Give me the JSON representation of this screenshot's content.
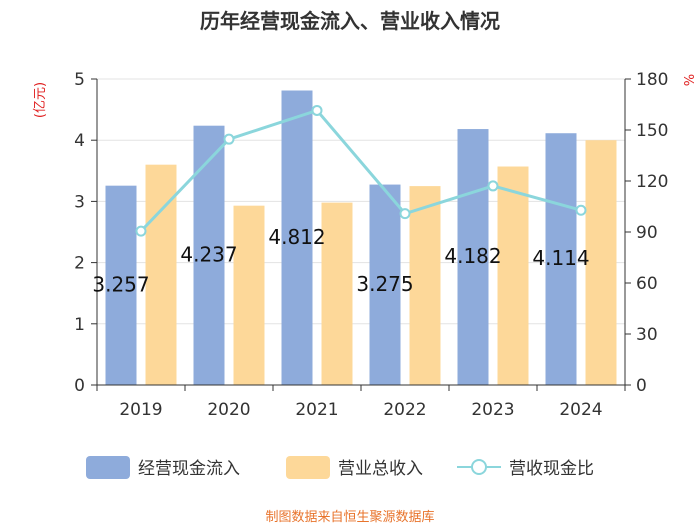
{
  "chart_data": {
    "type": "bar",
    "title": "历年经营现金流入、营业收入情况",
    "categories": [
      "2019",
      "2020",
      "2021",
      "2022",
      "2023",
      "2024"
    ],
    "series": [
      {
        "name": "经营现金流入",
        "type": "bar",
        "axis": "left",
        "color": "#8eabdb",
        "values": [
          3.257,
          4.237,
          4.812,
          3.275,
          4.182,
          4.114
        ],
        "labels": [
          "3.257",
          "4.237",
          "4.812",
          "3.275",
          "4.182",
          "4.114"
        ]
      },
      {
        "name": "营业总收入",
        "type": "bar",
        "axis": "left",
        "color": "#fdd899",
        "values": [
          3.6,
          2.93,
          2.98,
          3.25,
          3.57,
          4.0
        ]
      },
      {
        "name": "营收现金比",
        "type": "line",
        "axis": "right",
        "color": "#8bd6dc",
        "values": [
          90.5,
          144.6,
          161.5,
          100.8,
          117.1,
          102.8
        ]
      }
    ],
    "y_left": {
      "unit": "(亿元)",
      "min": 0,
      "max": 5,
      "ticks": [
        0,
        1,
        2,
        3,
        4,
        5
      ]
    },
    "y_right": {
      "unit": "%",
      "min": 0,
      "max": 180,
      "ticks": [
        0,
        30,
        60,
        90,
        120,
        150,
        180
      ]
    },
    "grid": true,
    "legend_position": "bottom"
  },
  "source_text": "制图数据来自恒生聚源数据库"
}
